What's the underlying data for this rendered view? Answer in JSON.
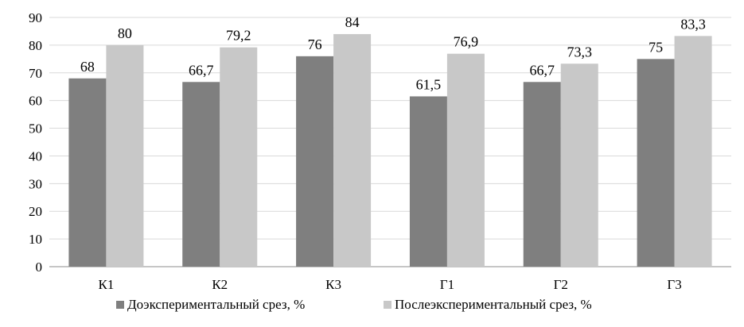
{
  "chart_data": {
    "type": "bar",
    "categories": [
      "К1",
      "К2",
      "К3",
      "Г1",
      "Г2",
      "Г3"
    ],
    "series": [
      {
        "name": "Доэкспериментальный срез, %",
        "values": [
          68,
          66.7,
          76,
          61.5,
          66.7,
          75
        ],
        "labels": [
          "68",
          "66,7",
          "76",
          "61,5",
          "66,7",
          "75"
        ],
        "color": "#7f7f7f"
      },
      {
        "name": "Послеэкспериментальный срез, %",
        "values": [
          80,
          79.2,
          84,
          76.9,
          73.3,
          83.3
        ],
        "labels": [
          "80",
          "79,2",
          "84",
          "76,9",
          "73,3",
          "83,3"
        ],
        "color": "#c8c8c8"
      }
    ],
    "yticks": [
      0,
      10,
      20,
      30,
      40,
      50,
      60,
      70,
      80,
      90
    ],
    "ylim": [
      0,
      90
    ],
    "grid": true,
    "legend_position": "bottom"
  }
}
